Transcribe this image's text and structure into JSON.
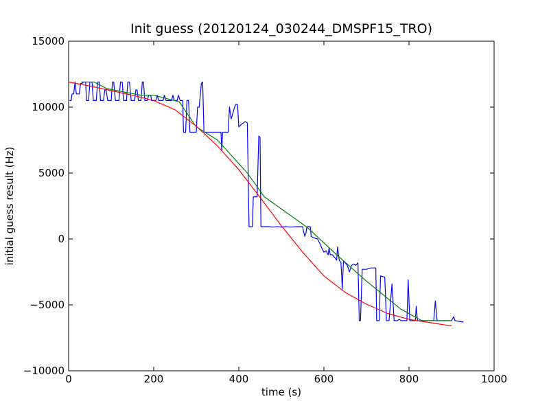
{
  "chart_data": {
    "type": "line",
    "title": "Init guess (20120124_030244_DMSPF15_TRO)",
    "xlabel": "time (s)",
    "ylabel": "initial guess result (Hz)",
    "xlim": [
      0,
      1000
    ],
    "ylim": [
      -10000,
      15000
    ],
    "xticks": [
      0,
      200,
      400,
      600,
      800,
      1000
    ],
    "yticks": [
      -10000,
      -5000,
      0,
      5000,
      10000,
      15000
    ],
    "grid": false,
    "series": [
      {
        "color": "#0000ff",
        "points": [
          [
            2,
            10500
          ],
          [
            6,
            10500
          ],
          [
            8,
            11000
          ],
          [
            12,
            11000
          ],
          [
            15,
            11900
          ],
          [
            18,
            11000
          ],
          [
            25,
            11000
          ],
          [
            28,
            11800
          ],
          [
            32,
            11800
          ],
          [
            35,
            11900
          ],
          [
            40,
            11900
          ],
          [
            42,
            10500
          ],
          [
            47,
            10500
          ],
          [
            50,
            11900
          ],
          [
            55,
            11900
          ],
          [
            58,
            10500
          ],
          [
            65,
            10500
          ],
          [
            68,
            11900
          ],
          [
            72,
            11900
          ],
          [
            75,
            10500
          ],
          [
            82,
            10500
          ],
          [
            85,
            11300
          ],
          [
            88,
            11300
          ],
          [
            92,
            10500
          ],
          [
            100,
            10500
          ],
          [
            103,
            11900
          ],
          [
            106,
            11900
          ],
          [
            110,
            10500
          ],
          [
            118,
            10500
          ],
          [
            122,
            11900
          ],
          [
            126,
            11900
          ],
          [
            129,
            10500
          ],
          [
            136,
            10500
          ],
          [
            139,
            11900
          ],
          [
            143,
            11900
          ],
          [
            147,
            10500
          ],
          [
            155,
            10500
          ],
          [
            158,
            11300
          ],
          [
            161,
            11300
          ],
          [
            164,
            10500
          ],
          [
            170,
            10500
          ],
          [
            173,
            11900
          ],
          [
            176,
            11900
          ],
          [
            179,
            10500
          ],
          [
            185,
            10500
          ],
          [
            188,
            10900
          ],
          [
            193,
            10900
          ],
          [
            195,
            10500
          ],
          [
            205,
            10500
          ],
          [
            208,
            10900
          ],
          [
            212,
            10500
          ],
          [
            222,
            10500
          ],
          [
            225,
            10900
          ],
          [
            229,
            10500
          ],
          [
            242,
            10500
          ],
          [
            245,
            10900
          ],
          [
            248,
            10500
          ],
          [
            255,
            10500
          ],
          [
            258,
            10900
          ],
          [
            262,
            10500
          ],
          [
            268,
            10500
          ],
          [
            270,
            8100
          ],
          [
            275,
            8100
          ],
          [
            278,
            10500
          ],
          [
            282,
            10500
          ],
          [
            285,
            8100
          ],
          [
            300,
            8100
          ],
          [
            303,
            10000
          ],
          [
            307,
            10000
          ],
          [
            312,
            11800
          ],
          [
            315,
            11900
          ],
          [
            318,
            8100
          ],
          [
            358,
            8100
          ],
          [
            360,
            6700
          ],
          [
            362,
            8100
          ],
          [
            375,
            8100
          ],
          [
            378,
            10000
          ],
          [
            382,
            9100
          ],
          [
            390,
            10000
          ],
          [
            393,
            10200
          ],
          [
            397,
            10200
          ],
          [
            400,
            8500
          ],
          [
            406,
            8700
          ],
          [
            415,
            8900
          ],
          [
            420,
            8800
          ],
          [
            424,
            930
          ],
          [
            432,
            930
          ],
          [
            434,
            3200
          ],
          [
            443,
            3200
          ],
          [
            447,
            7800
          ],
          [
            450,
            7700
          ],
          [
            452,
            930
          ],
          [
            470,
            930
          ],
          [
            480,
            900
          ],
          [
            490,
            930
          ],
          [
            500,
            900
          ],
          [
            510,
            930
          ],
          [
            520,
            900
          ],
          [
            540,
            930
          ],
          [
            550,
            930
          ],
          [
            552,
            600
          ],
          [
            555,
            200
          ],
          [
            558,
            500
          ],
          [
            560,
            930
          ],
          [
            568,
            930
          ],
          [
            570,
            200
          ],
          [
            575,
            100
          ],
          [
            585,
            0
          ],
          [
            590,
            -300
          ],
          [
            595,
            -700
          ],
          [
            600,
            -1000
          ],
          [
            605,
            -900
          ],
          [
            610,
            -1200
          ],
          [
            612,
            -700
          ],
          [
            615,
            -1200
          ],
          [
            620,
            -1200
          ],
          [
            625,
            -1400
          ],
          [
            630,
            -1600
          ],
          [
            632,
            -600
          ],
          [
            636,
            -1600
          ],
          [
            640,
            -1800
          ],
          [
            642,
            -2900
          ],
          [
            643,
            -3800
          ],
          [
            646,
            -1700
          ],
          [
            650,
            -1800
          ],
          [
            655,
            -2000
          ],
          [
            660,
            -2500
          ],
          [
            665,
            -2000
          ],
          [
            670,
            -1900
          ],
          [
            675,
            -2000
          ],
          [
            680,
            -1800
          ],
          [
            683,
            -6200
          ],
          [
            686,
            -6200
          ],
          [
            690,
            -2300
          ],
          [
            700,
            -2300
          ],
          [
            710,
            -2200
          ],
          [
            722,
            -2200
          ],
          [
            724,
            -6200
          ],
          [
            730,
            -6200
          ],
          [
            733,
            -2800
          ],
          [
            743,
            -2900
          ],
          [
            747,
            -6200
          ],
          [
            753,
            -6200
          ],
          [
            760,
            -3400
          ],
          [
            765,
            -6200
          ],
          [
            772,
            -6200
          ],
          [
            777,
            -6100
          ],
          [
            783,
            -6200
          ],
          [
            795,
            -6200
          ],
          [
            798,
            -3100
          ],
          [
            802,
            -6200
          ],
          [
            815,
            -6200
          ],
          [
            817,
            -5100
          ],
          [
            820,
            -6200
          ],
          [
            858,
            -6200
          ],
          [
            862,
            -4700
          ],
          [
            866,
            -6200
          ],
          [
            900,
            -6200
          ],
          [
            905,
            -5900
          ],
          [
            908,
            -6200
          ],
          [
            928,
            -6300
          ]
        ]
      },
      {
        "color": "#008000",
        "points": [
          [
            30,
            11900
          ],
          [
            60,
            11900
          ],
          [
            90,
            11400
          ],
          [
            170,
            10900
          ],
          [
            200,
            10900
          ],
          [
            260,
            10400
          ],
          [
            300,
            8500
          ],
          [
            350,
            7500
          ],
          [
            420,
            5000
          ],
          [
            460,
            3200
          ],
          [
            560,
            900
          ],
          [
            630,
            -1200
          ],
          [
            700,
            -3200
          ],
          [
            780,
            -5300
          ],
          [
            830,
            -6200
          ],
          [
            900,
            -6200
          ]
        ]
      },
      {
        "color": "#ff0000",
        "points": [
          [
            0,
            11900
          ],
          [
            50,
            11600
          ],
          [
            100,
            11250
          ],
          [
            150,
            10900
          ],
          [
            200,
            10500
          ],
          [
            250,
            9800
          ],
          [
            300,
            8550
          ],
          [
            350,
            7050
          ],
          [
            400,
            5250
          ],
          [
            450,
            3150
          ],
          [
            500,
            1000
          ],
          [
            550,
            -1000
          ],
          [
            600,
            -2800
          ],
          [
            650,
            -4050
          ],
          [
            700,
            -4950
          ],
          [
            750,
            -5650
          ],
          [
            800,
            -6100
          ],
          [
            850,
            -6350
          ],
          [
            900,
            -6600
          ]
        ]
      }
    ]
  }
}
